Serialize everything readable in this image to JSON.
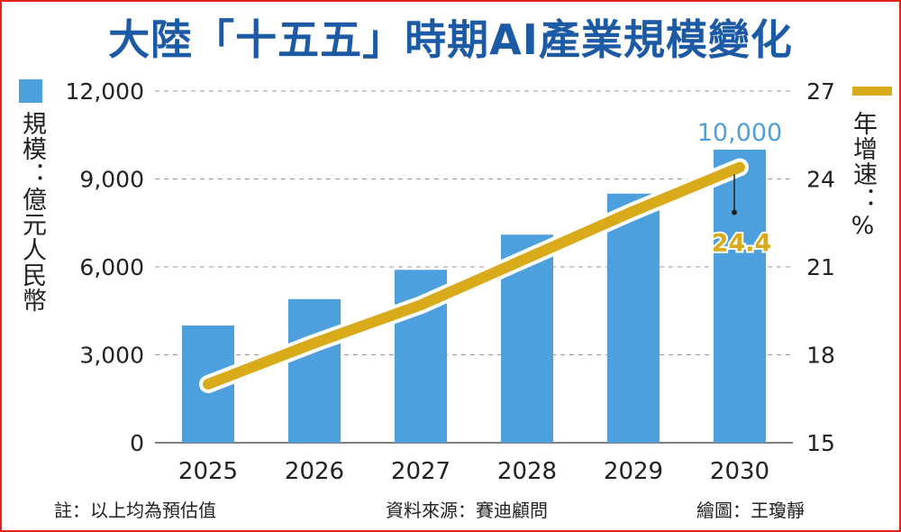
{
  "title": "大陸「十五五」時期AI產業規模變化",
  "left_axis_label": "規模：億元人民幣",
  "right_axis_label": "年增速：%",
  "footer": {
    "note": "註：以上均為預估值",
    "source": "資料來源：賽迪顧問",
    "credit": "繪圖：王瓊靜"
  },
  "colors": {
    "bar": "#4e9fdd",
    "line": "#d9aa1a",
    "title": "#1c5aa6",
    "bar_label": "#4e9fdd",
    "line_label": "#d9aa1a",
    "frame": "#e2231a"
  },
  "chart_data": {
    "type": "bar",
    "categories": [
      "2025",
      "2026",
      "2027",
      "2028",
      "2029",
      "2030"
    ],
    "series": [
      {
        "type": "bar",
        "axis": "left",
        "values": [
          4000,
          4900,
          5900,
          7100,
          8500,
          10000
        ]
      },
      {
        "type": "line",
        "axis": "right",
        "values": [
          17.0,
          18.4,
          19.7,
          21.3,
          22.9,
          24.4
        ]
      }
    ],
    "y_left": {
      "min": 0,
      "max": 12000,
      "ticks": [
        "0",
        "3,000",
        "6,000",
        "9,000",
        "12,000"
      ]
    },
    "y_right": {
      "min": 15,
      "max": 27,
      "ticks": [
        "15",
        "18",
        "21",
        "24",
        "27"
      ]
    },
    "annotations": [
      {
        "series": 0,
        "index": 5,
        "text": "10,000"
      },
      {
        "series": 1,
        "index": 5,
        "text": "24.4"
      }
    ],
    "grid": "horizontal-dashed",
    "legend": {
      "bar": "top-left",
      "line": "top-right"
    }
  }
}
